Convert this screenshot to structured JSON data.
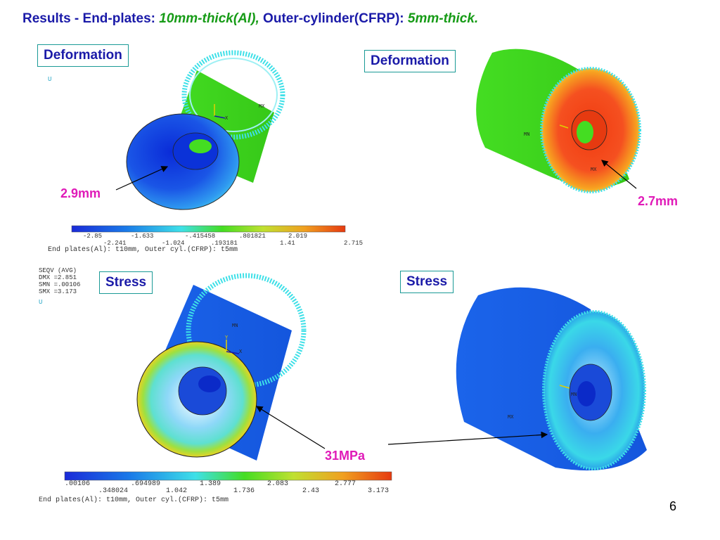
{
  "title": {
    "part1": "Results - End-plates: ",
    "part2": "10mm-thick(Al),",
    "part3": " Outer-cylinder(CFRP): ",
    "part4": "5mm-thick."
  },
  "panels": {
    "top_left_label": "Deformation",
    "top_right_label": "Deformation",
    "bottom_left_label": "Stress",
    "bottom_right_label": "Stress"
  },
  "callouts": {
    "top_left": "2.9mm",
    "top_right": "2.7mm",
    "bottom": "31MPa"
  },
  "markers": {
    "mx": "MX",
    "mn": "MN",
    "x": "X",
    "y": "Y"
  },
  "deformation_scale": {
    "top_row": [
      "-2.85",
      "-1.633",
      "-.415458",
      ".801821",
      "2.019"
    ],
    "bottom_row": [
      "-2.241",
      "-1.024",
      ".193181",
      "1.41",
      "2.715"
    ],
    "caption": "End plates(Al): t10mm, Outer cyl.(CFRP): t5mm"
  },
  "stress_info": {
    "line1": "SEQV     (AVG)",
    "line2": "DMX =2.851",
    "line3": "SMN =.00106",
    "line4": "SMX =3.173",
    "line5": "U"
  },
  "deformation_info": {
    "line1": "U"
  },
  "stress_scale": {
    "top_row": [
      ".00106",
      ".694989",
      "1.389",
      "2.083",
      "2.777"
    ],
    "bottom_row": [
      ".348024",
      "1.042",
      "1.736",
      "2.43",
      "3.173"
    ],
    "caption": "End plates(Al): t10mm, Outer cyl.(CFRP): t5mm"
  },
  "page_number": "6",
  "colors": {
    "title_blue": "#1a1aa8",
    "italic_green": "#169b16",
    "callout_magenta": "#e01ab8",
    "box_border": "#1a9a96",
    "fea_green": "#44dd22",
    "fea_blue": "#1a55e6",
    "fea_red": "#e63a10",
    "fea_cyan": "#3ee0e8"
  }
}
